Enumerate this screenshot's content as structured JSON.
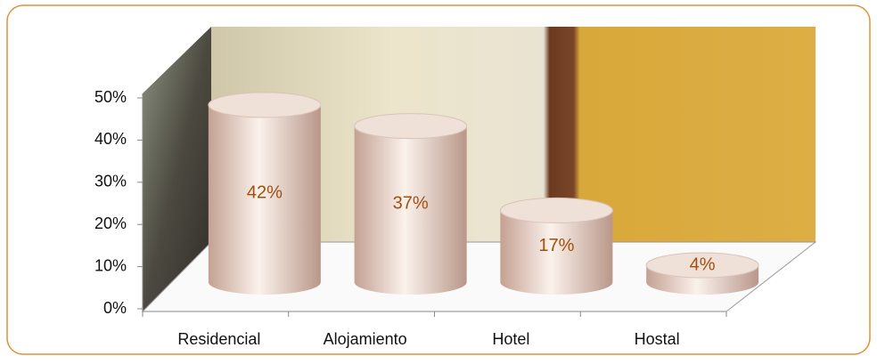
{
  "chart_data": {
    "type": "cylinder",
    "categories": [
      "Residencial",
      "Alojamiento",
      "Hotel",
      "Hostal"
    ],
    "values": [
      42,
      37,
      17,
      4
    ],
    "value_labels": [
      "42%",
      "37%",
      "17%",
      "4%"
    ],
    "color": "#efe0d8",
    "label_color": "#a0500f",
    "ylim": [
      0,
      50
    ],
    "yticks": [
      {
        "value": 0,
        "label": "0%"
      },
      {
        "value": 10,
        "label": "10%"
      },
      {
        "value": 20,
        "label": "20%"
      },
      {
        "value": 30,
        "label": "30%"
      },
      {
        "value": 40,
        "label": "40%"
      },
      {
        "value": 50,
        "label": "50%"
      }
    ],
    "grid": false
  }
}
